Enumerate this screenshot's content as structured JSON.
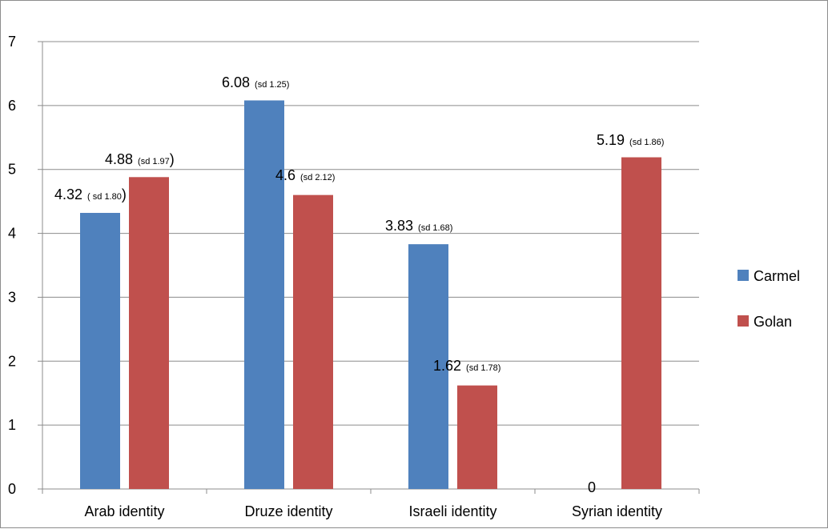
{
  "chart_data": {
    "type": "bar",
    "title": "",
    "xlabel": "",
    "ylabel": "",
    "ylim": [
      0,
      7
    ],
    "yticks": [
      0,
      1,
      2,
      3,
      4,
      5,
      6,
      7
    ],
    "grid": true,
    "legend_position": "right",
    "categories": [
      "Arab identity",
      "Druze identity",
      "Israeli identity",
      "Syrian identity"
    ],
    "series": [
      {
        "name": "Carmel",
        "color": "#4f81bd",
        "values": [
          4.32,
          6.08,
          3.83,
          0
        ],
        "labels": [
          {
            "value": "4.32",
            "sd": "( sd 1.80",
            "close": ")"
          },
          {
            "value": "6.08",
            "sd": "(sd 1.25)",
            "close": ""
          },
          {
            "value": "3.83",
            "sd": "(sd 1.68)",
            "close": ""
          },
          {
            "value": "0",
            "sd": "",
            "close": ""
          }
        ]
      },
      {
        "name": "Golan",
        "color": "#c0504d",
        "values": [
          4.88,
          4.6,
          1.62,
          5.19
        ],
        "labels": [
          {
            "value": "4.88",
            "sd": "(sd 1.97",
            "close": ")"
          },
          {
            "value": "4.6",
            "sd": "(sd 2.12)",
            "close": ""
          },
          {
            "value": "1.62",
            "sd": "(sd 1.78)",
            "close": ""
          },
          {
            "value": "5.19",
            "sd": "(sd 1.86)",
            "close": ""
          }
        ]
      }
    ]
  }
}
